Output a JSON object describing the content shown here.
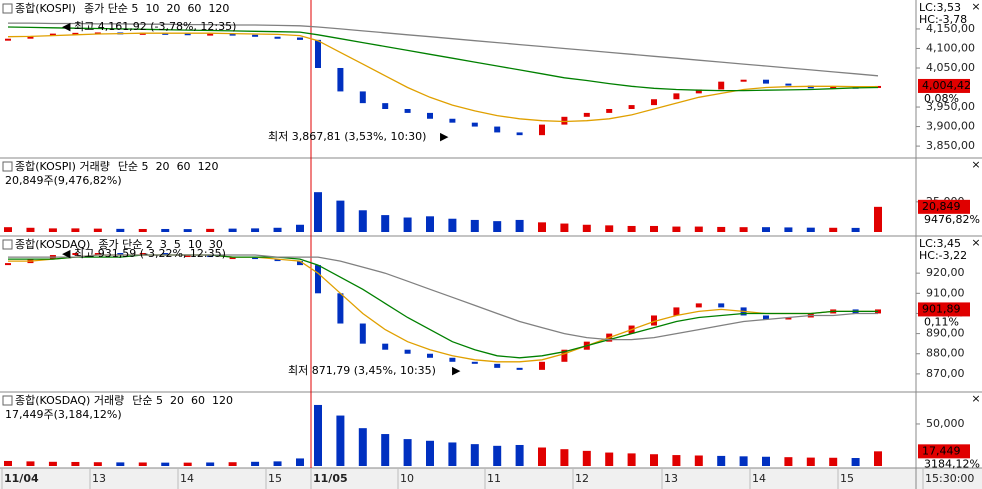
{
  "chart_data": [
    {
      "type": "candlestick",
      "title": "종합(KOSPI)",
      "legend": [
        {
          "name": "종가 단순 5",
          "color": "#c000c0"
        },
        {
          "name": "10",
          "color": "#000080"
        },
        {
          "name": "20",
          "color": "#e0a000"
        },
        {
          "name": "60",
          "color": "#008000"
        },
        {
          "name": "120",
          "color": "#808080"
        }
      ],
      "ylim": [
        3840,
        4178
      ],
      "yticks": [
        {
          "value": 4150,
          "label": "4,150,00"
        },
        {
          "value": 4100,
          "label": "4,100,00"
        },
        {
          "value": 4050,
          "label": "4,050,00"
        },
        {
          "value": 3950,
          "label": "3,950,00"
        },
        {
          "value": 3900,
          "label": "3,900,00"
        },
        {
          "value": 3850,
          "label": "3,850,00"
        }
      ],
      "values": [
        4125,
        4132,
        4138,
        4140,
        4141,
        4138,
        4140,
        4139,
        4137,
        4138,
        4135,
        4130,
        4128,
        4122,
        4050,
        3990,
        3960,
        3945,
        3935,
        3920,
        3910,
        3900,
        3885,
        3878,
        3905,
        3925,
        3935,
        3945,
        3955,
        3970,
        3985,
        3995,
        4015,
        4020,
        4010,
        4005,
        3998,
        4002,
        4000,
        4004
      ],
      "series": [
        {
          "name": "20",
          "color": "#e0a000",
          "values": [
            4130,
            4131,
            4133,
            4135,
            4137,
            4138,
            4139,
            4139,
            4139,
            4139,
            4138,
            4137,
            4136,
            4133,
            4120,
            4090,
            4060,
            4030,
            4000,
            3975,
            3955,
            3940,
            3928,
            3920,
            3915,
            3913,
            3915,
            3920,
            3930,
            3945,
            3960,
            3975,
            3985,
            3995,
            4000,
            4002,
            4003,
            4003,
            4002,
            4002
          ]
        },
        {
          "name": "60",
          "color": "#008000",
          "values": [
            4155,
            4154,
            4153,
            4152,
            4151,
            4150,
            4149,
            4148,
            4147,
            4146,
            4145,
            4144,
            4143,
            4142,
            4135,
            4125,
            4115,
            4105,
            4095,
            4085,
            4075,
            4065,
            4055,
            4045,
            4035,
            4025,
            4018,
            4010,
            4003,
            3998,
            3995,
            3993,
            3992,
            3992,
            3993,
            3994,
            3995,
            3997,
            3999,
            4000
          ]
        },
        {
          "name": "120",
          "color": "#808080",
          "values": [
            4165,
            4165,
            4164,
            4164,
            4163,
            4163,
            4162,
            4162,
            4161,
            4161,
            4160,
            4160,
            4159,
            4158,
            4155,
            4150,
            4145,
            4140,
            4135,
            4130,
            4125,
            4120,
            4115,
            4110,
            4105,
            4100,
            4095,
            4090,
            4085,
            4080,
            4075,
            4070,
            4065,
            4060,
            4055,
            4050,
            4045,
            4040,
            4035,
            4030
          ]
        }
      ],
      "high_label": "최고 4,161,92 (-3,78%, 12:35)",
      "low_label": "최저 3,867,81 (3,53%, 10:30)",
      "lc": "LC:3,53",
      "hc": "HC:-3,78",
      "last": "4,004,42",
      "change": "0,08%"
    },
    {
      "type": "bar",
      "title": "종합(KOSPI) 거래량",
      "legend": [
        {
          "name": "단순 5",
          "color": "#c000c0"
        },
        {
          "name": "20",
          "color": "#e0a000"
        },
        {
          "name": "60",
          "color": "#008000"
        },
        {
          "name": "120",
          "color": "#808080"
        }
      ],
      "info": "20,849주(9,476,82%)",
      "ylim": [
        0,
        34800
      ],
      "yticks": [
        {
          "value": 25000,
          "label": "25,000"
        }
      ],
      "values": [
        4000,
        3500,
        3000,
        3000,
        2800,
        2600,
        2500,
        2500,
        2400,
        2600,
        2800,
        3000,
        3500,
        6000,
        33000,
        26000,
        18000,
        14000,
        12000,
        13000,
        11000,
        10000,
        9000,
        10000,
        8000,
        7000,
        6000,
        5500,
        5000,
        5000,
        4500,
        4500,
        4200,
        4000,
        4000,
        3800,
        3600,
        3500,
        3400,
        20849
      ],
      "last": "20,849",
      "change": "9476,82%"
    },
    {
      "type": "candlestick",
      "title": "종합(KOSDAQ)",
      "legend": [
        {
          "name": "종가 단순 2",
          "color": "#c000c0"
        },
        {
          "name": "3",
          "color": "#000080"
        },
        {
          "name": "5",
          "color": "#e0a000"
        },
        {
          "name": "10",
          "color": "#008000"
        },
        {
          "name": "30",
          "color": "#808080"
        }
      ],
      "ylim": [
        862,
        931.5
      ],
      "yticks": [
        {
          "value": 920,
          "label": "920,00"
        },
        {
          "value": 910,
          "label": "910,00"
        },
        {
          "value": 900,
          "label": "900,00"
        },
        {
          "value": 890,
          "label": "890,00"
        },
        {
          "value": 880,
          "label": "880,00"
        },
        {
          "value": 870,
          "label": "870,00"
        }
      ],
      "values": [
        925,
        927,
        929,
        930,
        930,
        929,
        930,
        929,
        929,
        928,
        928,
        927,
        926,
        924,
        910,
        895,
        885,
        882,
        880,
        878,
        876,
        875,
        873,
        872,
        876,
        882,
        886,
        890,
        894,
        899,
        903,
        905,
        903,
        899,
        897,
        898,
        900,
        902,
        900,
        902
      ],
      "series": [
        {
          "name": "5",
          "color": "#e0a000",
          "values": [
            926,
            926,
            927,
            928,
            929,
            929,
            929,
            929,
            929,
            929,
            928,
            928,
            927,
            926,
            920,
            910,
            900,
            892,
            886,
            882,
            879,
            877,
            876,
            876,
            877,
            880,
            884,
            888,
            892,
            896,
            899,
            901,
            902,
            901,
            900,
            900,
            900,
            901,
            901,
            901
          ]
        },
        {
          "name": "10",
          "color": "#008000",
          "values": [
            927,
            927,
            927,
            928,
            928,
            928,
            929,
            929,
            929,
            929,
            928,
            928,
            928,
            927,
            924,
            918,
            912,
            905,
            898,
            892,
            886,
            882,
            879,
            878,
            879,
            881,
            884,
            887,
            890,
            893,
            896,
            898,
            899,
            900,
            900,
            900,
            900,
            901,
            901,
            901
          ]
        },
        {
          "name": "30",
          "color": "#808080",
          "values": [
            928,
            928,
            928,
            928,
            929,
            929,
            929,
            929,
            929,
            929,
            929,
            929,
            928,
            928,
            928,
            926,
            923,
            920,
            916,
            912,
            908,
            904,
            900,
            896,
            893,
            890,
            888,
            887,
            887,
            888,
            890,
            892,
            894,
            896,
            897,
            898,
            899,
            899,
            900,
            900
          ]
        }
      ],
      "high_label": "최고 931,59 (-3,22%, 12:35)",
      "low_label": "최저 871,79 (3,45%, 10:35)",
      "lc": "LC:3,45",
      "hc": "HC:-3,22",
      "last": "901,89",
      "change": "0,11%"
    },
    {
      "type": "bar",
      "title": "종합(KOSDAQ) 거래량",
      "legend": [
        {
          "name": "단순 5",
          "color": "#c000c0"
        },
        {
          "name": "20",
          "color": "#e0a000"
        },
        {
          "name": "60",
          "color": "#008000"
        },
        {
          "name": "120",
          "color": "#808080"
        }
      ],
      "info": "17,449주(3,184,12%)",
      "ylim": [
        0,
        78500
      ],
      "yticks": [
        {
          "value": 50000,
          "label": "50,000"
        }
      ],
      "values": [
        6000,
        5500,
        5000,
        4800,
        4500,
        4300,
        4200,
        4000,
        4000,
        4200,
        4500,
        5000,
        5500,
        9000,
        72600,
        60000,
        45000,
        38000,
        32000,
        30000,
        28000,
        26000,
        24000,
        25000,
        22000,
        20000,
        18000,
        16000,
        15000,
        14000,
        13000,
        12500,
        12000,
        11500,
        11000,
        10500,
        10000,
        9800,
        9500,
        17449
      ],
      "last": "17,449",
      "change": "3184,12%"
    }
  ],
  "time_axis": [
    "11/04",
    "13",
    "14",
    "15",
    "11/05",
    "10",
    "11",
    "12",
    "13",
    "14",
    "15",
    "15:30:00"
  ]
}
